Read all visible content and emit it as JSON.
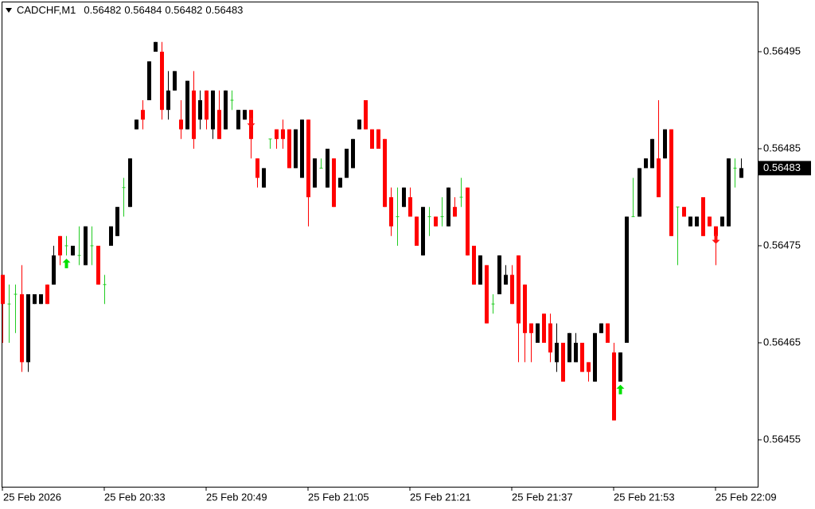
{
  "chart_data": {
    "type": "candlestick",
    "symbol": "CADCHF,M1",
    "ohlc": [
      0.56482,
      0.56484,
      0.56482,
      0.56483
    ],
    "current_price": 0.56483,
    "ylim": [
      0.5645,
      0.565
    ],
    "yticks": [
      0.56455,
      0.56465,
      0.56475,
      0.56485,
      0.56495
    ],
    "xticks": [
      {
        "value": 0,
        "label": "25 Feb 2026"
      },
      {
        "value": 16,
        "label": "25 Feb 20:33"
      },
      {
        "value": 32,
        "label": "25 Feb 20:49"
      },
      {
        "value": 48,
        "label": "25 Feb 21:05"
      },
      {
        "value": 64,
        "label": "25 Feb 21:21"
      },
      {
        "value": 80,
        "label": "25 Feb 21:37"
      },
      {
        "value": 96,
        "label": "25 Feb 21:53"
      },
      {
        "value": 112,
        "label": "25 Feb 22:09"
      }
    ],
    "up_color": "#000000",
    "down_color": "#ff0000",
    "doji_color": "#22cc22",
    "buy_color": "#00e000",
    "sell_color": "#ff1010",
    "candles": [
      {
        "o": 0.56472,
        "h": 0.56472,
        "l": 0.56465,
        "c": 0.56469
      },
      {
        "o": 0.56469,
        "h": 0.56471,
        "l": 0.56465,
        "c": 0.56469
      },
      {
        "o": 0.5647,
        "h": 0.56471,
        "l": 0.56466,
        "c": 0.5647
      },
      {
        "o": 0.5647,
        "h": 0.56473,
        "l": 0.56462,
        "c": 0.56463
      },
      {
        "o": 0.56463,
        "h": 0.5647,
        "l": 0.56462,
        "c": 0.5647
      },
      {
        "o": 0.56469,
        "h": 0.5647,
        "l": 0.56469,
        "c": 0.5647
      },
      {
        "o": 0.56469,
        "h": 0.5647,
        "l": 0.56469,
        "c": 0.5647
      },
      {
        "o": 0.56471,
        "h": 0.56471,
        "l": 0.56469,
        "c": 0.56469
      },
      {
        "o": 0.56471,
        "h": 0.56475,
        "l": 0.56471,
        "c": 0.56474
      },
      {
        "o": 0.56476,
        "h": 0.56476,
        "l": 0.56473,
        "c": 0.56474
      },
      {
        "o": 0.56475,
        "h": 0.56476,
        "l": 0.56474,
        "c": 0.56475,
        "signal": "buy"
      },
      {
        "o": 0.56474,
        "h": 0.56475,
        "l": 0.56474,
        "c": 0.56475
      },
      {
        "o": 0.56474,
        "h": 0.56477,
        "l": 0.56473,
        "c": 0.56474
      },
      {
        "o": 0.56473,
        "h": 0.56477,
        "l": 0.56473,
        "c": 0.56477
      },
      {
        "o": 0.56475,
        "h": 0.56477,
        "l": 0.56473,
        "c": 0.56475
      },
      {
        "o": 0.56475,
        "h": 0.56475,
        "l": 0.56471,
        "c": 0.56471
      },
      {
        "o": 0.56471,
        "h": 0.56472,
        "l": 0.56469,
        "c": 0.56471
      },
      {
        "o": 0.56475,
        "h": 0.56477,
        "l": 0.56475,
        "c": 0.56477
      },
      {
        "o": 0.56476,
        "h": 0.56479,
        "l": 0.56476,
        "c": 0.56479
      },
      {
        "o": 0.56481,
        "h": 0.56482,
        "l": 0.56478,
        "c": 0.56481
      },
      {
        "o": 0.56479,
        "h": 0.56484,
        "l": 0.56479,
        "c": 0.56484
      },
      {
        "o": 0.56487,
        "h": 0.56488,
        "l": 0.56487,
        "c": 0.56488
      },
      {
        "o": 0.56489,
        "h": 0.5649,
        "l": 0.56487,
        "c": 0.56488
      },
      {
        "o": 0.5649,
        "h": 0.56494,
        "l": 0.5649,
        "c": 0.56494
      },
      {
        "o": 0.56495,
        "h": 0.56496,
        "l": 0.56495,
        "c": 0.56496
      },
      {
        "o": 0.56495,
        "h": 0.56496,
        "l": 0.56488,
        "c": 0.56489
      },
      {
        "o": 0.56489,
        "h": 0.56493,
        "l": 0.56488,
        "c": 0.56491
      },
      {
        "o": 0.56491,
        "h": 0.56493,
        "l": 0.56491,
        "c": 0.56493
      },
      {
        "o": 0.56488,
        "h": 0.5649,
        "l": 0.56486,
        "c": 0.56487
      },
      {
        "o": 0.56487,
        "h": 0.56492,
        "l": 0.56487,
        "c": 0.56492
      },
      {
        "o": 0.56491,
        "h": 0.56493,
        "l": 0.56485,
        "c": 0.56486
      },
      {
        "o": 0.56488,
        "h": 0.56491,
        "l": 0.56487,
        "c": 0.5649
      },
      {
        "o": 0.56491,
        "h": 0.56491,
        "l": 0.56487,
        "c": 0.56488
      },
      {
        "o": 0.56487,
        "h": 0.56491,
        "l": 0.56486,
        "c": 0.56491
      },
      {
        "o": 0.56489,
        "h": 0.56491,
        "l": 0.56486,
        "c": 0.56486
      },
      {
        "o": 0.56487,
        "h": 0.56491,
        "l": 0.56487,
        "c": 0.56491
      },
      {
        "o": 0.5649,
        "h": 0.56491,
        "l": 0.56489,
        "c": 0.5649
      },
      {
        "o": 0.56487,
        "h": 0.56489,
        "l": 0.56487,
        "c": 0.56489
      },
      {
        "o": 0.56488,
        "h": 0.56489,
        "l": 0.56488,
        "c": 0.56489
      },
      {
        "o": 0.56489,
        "h": 0.56489,
        "l": 0.56484,
        "c": 0.56486,
        "signal": "sell"
      },
      {
        "o": 0.56484,
        "h": 0.56484,
        "l": 0.56481,
        "c": 0.56482
      },
      {
        "o": 0.56481,
        "h": 0.56483,
        "l": 0.56481,
        "c": 0.56483
      },
      {
        "o": 0.56486,
        "h": 0.56486,
        "l": 0.56485,
        "c": 0.56486
      },
      {
        "o": 0.56487,
        "h": 0.56487,
        "l": 0.56485,
        "c": 0.56486
      },
      {
        "o": 0.56487,
        "h": 0.56488,
        "l": 0.56485,
        "c": 0.56486
      },
      {
        "o": 0.56487,
        "h": 0.56487,
        "l": 0.56483,
        "c": 0.56483
      },
      {
        "o": 0.56483,
        "h": 0.56487,
        "l": 0.56483,
        "c": 0.56487
      },
      {
        "o": 0.56482,
        "h": 0.56488,
        "l": 0.56482,
        "c": 0.56488
      },
      {
        "o": 0.56488,
        "h": 0.56488,
        "l": 0.56477,
        "c": 0.5648
      },
      {
        "o": 0.56481,
        "h": 0.56484,
        "l": 0.56481,
        "c": 0.56484
      },
      {
        "o": 0.56483,
        "h": 0.56484,
        "l": 0.56483,
        "c": 0.56483
      },
      {
        "o": 0.56481,
        "h": 0.56485,
        "l": 0.56481,
        "c": 0.56485
      },
      {
        "o": 0.56484,
        "h": 0.56484,
        "l": 0.56479,
        "c": 0.56479
      },
      {
        "o": 0.56481,
        "h": 0.56482,
        "l": 0.56481,
        "c": 0.56482
      },
      {
        "o": 0.56482,
        "h": 0.56485,
        "l": 0.56482,
        "c": 0.56485
      },
      {
        "o": 0.56483,
        "h": 0.56486,
        "l": 0.56483,
        "c": 0.56486
      },
      {
        "o": 0.56487,
        "h": 0.56488,
        "l": 0.56487,
        "c": 0.56488
      },
      {
        "o": 0.5649,
        "h": 0.5649,
        "l": 0.56487,
        "c": 0.56487
      },
      {
        "o": 0.56487,
        "h": 0.56487,
        "l": 0.56485,
        "c": 0.56485
      },
      {
        "o": 0.56487,
        "h": 0.56487,
        "l": 0.56485,
        "c": 0.56485
      },
      {
        "o": 0.56486,
        "h": 0.56486,
        "l": 0.56479,
        "c": 0.56479
      },
      {
        "o": 0.5648,
        "h": 0.56481,
        "l": 0.56476,
        "c": 0.56477
      },
      {
        "o": 0.56478,
        "h": 0.56481,
        "l": 0.56475,
        "c": 0.56478
      },
      {
        "o": 0.56479,
        "h": 0.56481,
        "l": 0.56479,
        "c": 0.56481
      },
      {
        "o": 0.5648,
        "h": 0.56481,
        "l": 0.56478,
        "c": 0.56478
      },
      {
        "o": 0.56478,
        "h": 0.56478,
        "l": 0.56475,
        "c": 0.56475
      },
      {
        "o": 0.56474,
        "h": 0.56479,
        "l": 0.56474,
        "c": 0.56479
      },
      {
        "o": 0.56478,
        "h": 0.56479,
        "l": 0.56476,
        "c": 0.56478
      },
      {
        "o": 0.56478,
        "h": 0.56478,
        "l": 0.56477,
        "c": 0.56477
      },
      {
        "o": 0.56478,
        "h": 0.5648,
        "l": 0.56477,
        "c": 0.56478
      },
      {
        "o": 0.56477,
        "h": 0.56481,
        "l": 0.56477,
        "c": 0.56481
      },
      {
        "o": 0.56479,
        "h": 0.5648,
        "l": 0.56478,
        "c": 0.56478
      },
      {
        "o": 0.5648,
        "h": 0.56482,
        "l": 0.56479,
        "c": 0.5648
      },
      {
        "o": 0.56481,
        "h": 0.56481,
        "l": 0.56474,
        "c": 0.56474
      },
      {
        "o": 0.56475,
        "h": 0.56475,
        "l": 0.56471,
        "c": 0.56471
      },
      {
        "o": 0.56471,
        "h": 0.56474,
        "l": 0.56471,
        "c": 0.56474
      },
      {
        "o": 0.56473,
        "h": 0.56473,
        "l": 0.56467,
        "c": 0.56467
      },
      {
        "o": 0.56469,
        "h": 0.5647,
        "l": 0.56468,
        "c": 0.56469
      },
      {
        "o": 0.5647,
        "h": 0.56474,
        "l": 0.5647,
        "c": 0.56474
      },
      {
        "o": 0.56471,
        "h": 0.56473,
        "l": 0.56471,
        "c": 0.56472
      },
      {
        "o": 0.56472,
        "h": 0.56473,
        "l": 0.56469,
        "c": 0.56469
      },
      {
        "o": 0.56474,
        "h": 0.56474,
        "l": 0.56463,
        "c": 0.56467
      },
      {
        "o": 0.56471,
        "h": 0.56471,
        "l": 0.56463,
        "c": 0.56466
      },
      {
        "o": 0.56467,
        "h": 0.56467,
        "l": 0.56463,
        "c": 0.56466
      },
      {
        "o": 0.56465,
        "h": 0.56467,
        "l": 0.56465,
        "c": 0.56467
      },
      {
        "o": 0.56468,
        "h": 0.56468,
        "l": 0.56465,
        "c": 0.56465
      },
      {
        "o": 0.56467,
        "h": 0.56468,
        "l": 0.56463,
        "c": 0.56464
      },
      {
        "o": 0.56463,
        "h": 0.56467,
        "l": 0.56462,
        "c": 0.56465
      },
      {
        "o": 0.56465,
        "h": 0.56465,
        "l": 0.56461,
        "c": 0.56461
      },
      {
        "o": 0.56463,
        "h": 0.56466,
        "l": 0.56463,
        "c": 0.56466
      },
      {
        "o": 0.56463,
        "h": 0.56466,
        "l": 0.56463,
        "c": 0.56465
      },
      {
        "o": 0.56465,
        "h": 0.56465,
        "l": 0.56462,
        "c": 0.56462
      },
      {
        "o": 0.56463,
        "h": 0.56463,
        "l": 0.56461,
        "c": 0.56462
      },
      {
        "o": 0.56461,
        "h": 0.56466,
        "l": 0.56461,
        "c": 0.56466
      },
      {
        "o": 0.56466,
        "h": 0.56467,
        "l": 0.56466,
        "c": 0.56467
      },
      {
        "o": 0.56467,
        "h": 0.56467,
        "l": 0.56465,
        "c": 0.56465
      },
      {
        "o": 0.56464,
        "h": 0.56465,
        "l": 0.56457,
        "c": 0.56457
      },
      {
        "o": 0.56461,
        "h": 0.56464,
        "l": 0.56461,
        "c": 0.56464,
        "signal": "buy"
      },
      {
        "o": 0.56465,
        "h": 0.56478,
        "l": 0.56465,
        "c": 0.56478
      },
      {
        "o": 0.56478,
        "h": 0.56482,
        "l": 0.56478,
        "c": 0.56478
      },
      {
        "o": 0.56478,
        "h": 0.56483,
        "l": 0.56478,
        "c": 0.56483
      },
      {
        "o": 0.56483,
        "h": 0.56484,
        "l": 0.56483,
        "c": 0.56484
      },
      {
        "o": 0.56483,
        "h": 0.56486,
        "l": 0.56483,
        "c": 0.56486
      },
      {
        "o": 0.56484,
        "h": 0.5649,
        "l": 0.5648,
        "c": 0.5648
      },
      {
        "o": 0.56484,
        "h": 0.56487,
        "l": 0.56484,
        "c": 0.56487
      },
      {
        "o": 0.56487,
        "h": 0.56487,
        "l": 0.56476,
        "c": 0.56476
      },
      {
        "o": 0.56479,
        "h": 0.56479,
        "l": 0.56473,
        "c": 0.56479
      },
      {
        "o": 0.56479,
        "h": 0.56479,
        "l": 0.56478,
        "c": 0.56478
      },
      {
        "o": 0.56477,
        "h": 0.56478,
        "l": 0.56477,
        "c": 0.56478
      },
      {
        "o": 0.56477,
        "h": 0.56478,
        "l": 0.56477,
        "c": 0.56478
      },
      {
        "o": 0.5648,
        "h": 0.5648,
        "l": 0.56476,
        "c": 0.56476
      },
      {
        "o": 0.56478,
        "h": 0.56478,
        "l": 0.56477,
        "c": 0.56477
      },
      {
        "o": 0.56477,
        "h": 0.56477,
        "l": 0.56473,
        "c": 0.56476,
        "signal": "sell"
      },
      {
        "o": 0.56477,
        "h": 0.56478,
        "l": 0.56477,
        "c": 0.56478
      },
      {
        "o": 0.56477,
        "h": 0.56484,
        "l": 0.56477,
        "c": 0.56484
      },
      {
        "o": 0.56483,
        "h": 0.56484,
        "l": 0.56481,
        "c": 0.56483
      },
      {
        "o": 0.56482,
        "h": 0.56484,
        "l": 0.56482,
        "c": 0.56483
      }
    ]
  }
}
